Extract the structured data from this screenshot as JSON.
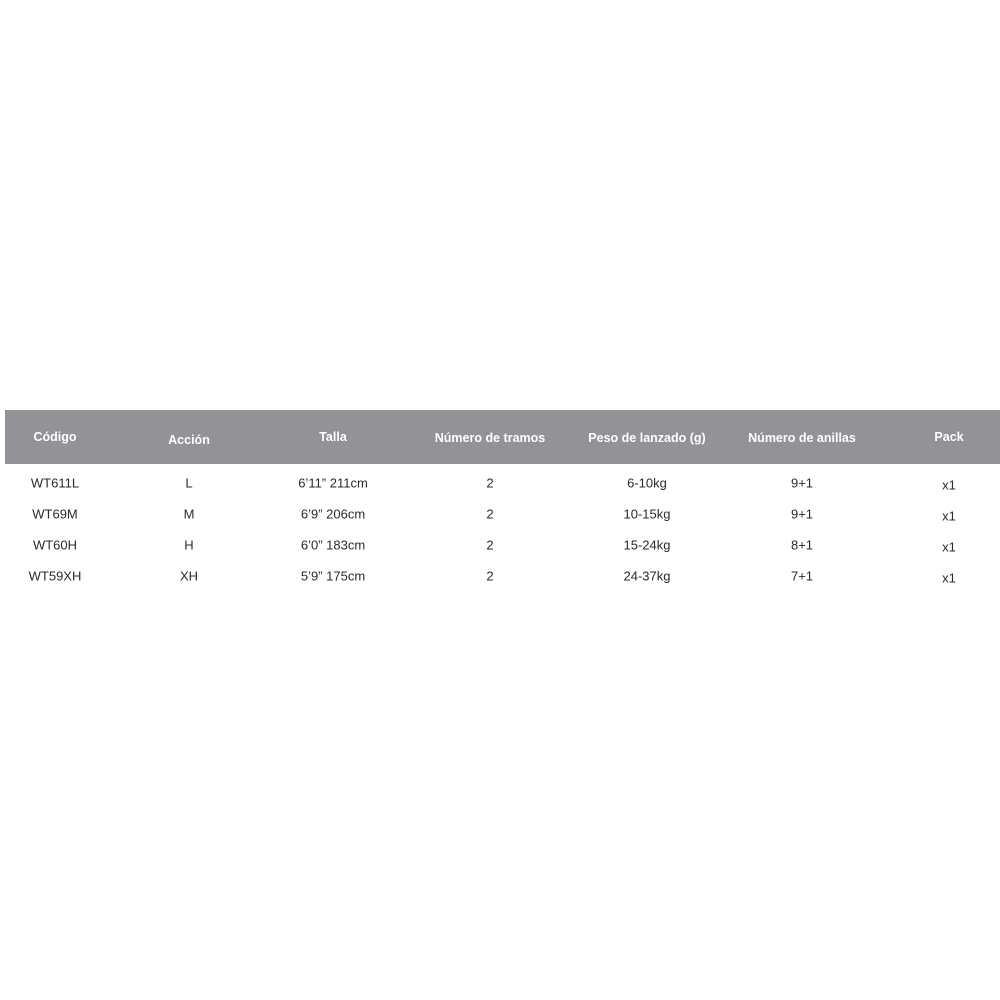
{
  "table": {
    "header_color": "#939397",
    "headers": [
      "Código",
      "Acción",
      "Talla",
      "Número de tramos",
      "Peso de lanzado (g)",
      "Número de anillas",
      "Pack"
    ],
    "rows": [
      [
        "WT611L",
        "L",
        "6’11” 211cm",
        "2",
        "6-10kg",
        "9+1",
        "x1"
      ],
      [
        "WT69M",
        "M",
        "6’9” 206cm",
        "2",
        "10-15kg",
        "9+1",
        "x1"
      ],
      [
        "WT60H",
        "H",
        "6’0” 183cm",
        "2",
        "15-24kg",
        "8+1",
        "x1"
      ],
      [
        "WT59XH",
        "XH",
        "5’9” 175cm",
        "2",
        "24-37kg",
        "7+1",
        "x1"
      ]
    ]
  }
}
